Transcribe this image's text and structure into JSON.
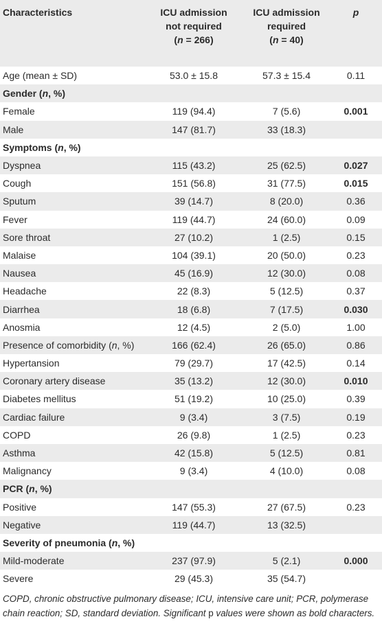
{
  "header": {
    "col1": "Characteristics",
    "col2": [
      "ICU admission",
      "not required",
      "(n = 266)"
    ],
    "col3": [
      "ICU admission",
      "required",
      "(n = 40)"
    ],
    "col4": "p"
  },
  "rows": [
    {
      "type": "data",
      "label": "Age (mean ± SD)",
      "a": "53.0 ± 15.8",
      "b": "57.3 ± 15.4",
      "p": "0.11",
      "bold": false
    },
    {
      "type": "section",
      "label": "Gender (n, %)"
    },
    {
      "type": "data",
      "label": "Female",
      "a": "119 (94.4)",
      "b": "7 (5.6)",
      "p": "0.001",
      "bold": true
    },
    {
      "type": "data",
      "label": "Male",
      "a": "147 (81.7)",
      "b": "33 (18.3)",
      "p": "",
      "bold": false
    },
    {
      "type": "section",
      "label": "Symptoms (n, %)"
    },
    {
      "type": "data",
      "label": "Dyspnea",
      "a": "115 (43.2)",
      "b": "25 (62.5)",
      "p": "0.027",
      "bold": true
    },
    {
      "type": "data",
      "label": "Cough",
      "a": "151 (56.8)",
      "b": "31 (77.5)",
      "p": "0.015",
      "bold": true
    },
    {
      "type": "data",
      "label": "Sputum",
      "a": "39 (14.7)",
      "b": "8 (20.0)",
      "p": "0.36",
      "bold": false
    },
    {
      "type": "data",
      "label": "Fever",
      "a": "119 (44.7)",
      "b": "24 (60.0)",
      "p": "0.09",
      "bold": false
    },
    {
      "type": "data",
      "label": "Sore throat",
      "a": "27 (10.2)",
      "b": "1 (2.5)",
      "p": "0.15",
      "bold": false
    },
    {
      "type": "data",
      "label": "Malaise",
      "a": "104 (39.1)",
      "b": "20 (50.0)",
      "p": "0.23",
      "bold": false
    },
    {
      "type": "data",
      "label": "Nausea",
      "a": "45 (16.9)",
      "b": "12 (30.0)",
      "p": "0.08",
      "bold": false
    },
    {
      "type": "data",
      "label": "Headache",
      "a": "22 (8.3)",
      "b": "5 (12.5)",
      "p": "0.37",
      "bold": false
    },
    {
      "type": "data",
      "label": "Diarrhea",
      "a": "18 (6.8)",
      "b": "7 (17.5)",
      "p": "0.030",
      "bold": true
    },
    {
      "type": "data",
      "label": "Anosmia",
      "a": "12 (4.5)",
      "b": "2 (5.0)",
      "p": "1.00",
      "bold": false
    },
    {
      "type": "data",
      "label": "Presence of comorbidity (n, %)",
      "a": "166 (62.4)",
      "b": "26 (65.0)",
      "p": "0.86",
      "bold": false
    },
    {
      "type": "data",
      "label": "Hypertansion",
      "a": "79 (29.7)",
      "b": "17 (42.5)",
      "p": "0.14",
      "bold": false
    },
    {
      "type": "data",
      "label": "Coronary artery disease",
      "a": "35 (13.2)",
      "b": "12 (30.0)",
      "p": "0.010",
      "bold": true
    },
    {
      "type": "data",
      "label": "Diabetes mellitus",
      "a": "51 (19.2)",
      "b": "10 (25.0)",
      "p": "0.39",
      "bold": false
    },
    {
      "type": "data",
      "label": "Cardiac failure",
      "a": "9 (3.4)",
      "b": "3 (7.5)",
      "p": "0.19",
      "bold": false
    },
    {
      "type": "data",
      "label": "COPD",
      "a": "26 (9.8)",
      "b": "1 (2.5)",
      "p": "0.23",
      "bold": false
    },
    {
      "type": "data",
      "label": "Asthma",
      "a": "42 (15.8)",
      "b": "5 (12.5)",
      "p": "0.81",
      "bold": false
    },
    {
      "type": "data",
      "label": "Malignancy",
      "a": "9 (3.4)",
      "b": "4 (10.0)",
      "p": "0.08",
      "bold": false
    },
    {
      "type": "section",
      "label": "PCR (n, %)"
    },
    {
      "type": "data",
      "label": "Positive",
      "a": "147 (55.3)",
      "b": "27 (67.5)",
      "p": "0.23",
      "bold": false
    },
    {
      "type": "data",
      "label": "Negative",
      "a": "119 (44.7)",
      "b": "13 (32.5)",
      "p": "",
      "bold": false
    },
    {
      "type": "section",
      "label": "Severity of pneumonia (n, %)"
    },
    {
      "type": "data",
      "label": "Mild-moderate",
      "a": "237 (97.9)",
      "b": "5 (2.1)",
      "p": "0.000",
      "bold": true
    },
    {
      "type": "data",
      "label": "Severe",
      "a": "29 (45.3)",
      "b": "35 (54.7)",
      "p": "",
      "bold": false
    }
  ],
  "footnote": "COPD, chronic obstructive pulmonary disease; ICU, intensive care unit; PCR, polymerase chain reaction; SD, standard deviation. Significant p values were shown as bold characters."
}
